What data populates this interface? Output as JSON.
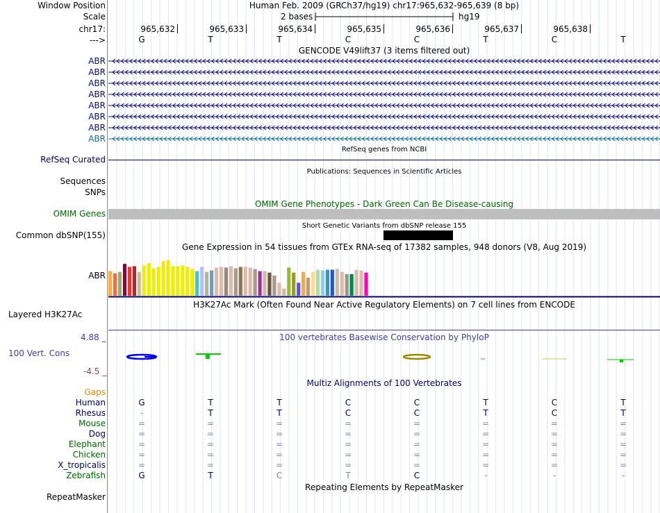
{
  "ruler": {
    "window_position_label": "Window Position",
    "window_position": "Human Feb. 2009 (GRCh37/hg19)   chr17:965,632-965,639 (8 bp)",
    "scale_label": "Scale",
    "scale_value": "2 bases",
    "assembly": "hg19",
    "chrom_label": "chr17:",
    "positions": [
      "965,632",
      "965,633",
      "965,634",
      "965,635",
      "965,636",
      "965,637",
      "965,638"
    ],
    "strand_label": "--->",
    "bases": [
      "G",
      "T",
      "T",
      "C",
      "C",
      "T",
      "C",
      "T"
    ]
  },
  "gencode": {
    "title": "GENCODE V49lift37 (3 items filtered out)",
    "rows": [
      "ABR",
      "ABR",
      "ABR",
      "ABR",
      "ABR",
      "ABR",
      "ABR",
      "ABR"
    ]
  },
  "refseq": {
    "title": "RefSeq genes from NCBI",
    "label": "RefSeq Curated"
  },
  "publications": {
    "title": "Publications: Sequences in Scientific Articles",
    "label_sequences": "Sequences",
    "label_snps": "SNPs"
  },
  "omim": {
    "title": "OMIM Gene Phenotypes - Dark Green Can Be Disease-causing",
    "label": "OMIM Genes"
  },
  "dbsnp": {
    "title": "Short Genetic Variants from dbSNP release 155",
    "label": "Common dbSNP(155)"
  },
  "gtex": {
    "title": "Gene Expression in 54 tissues from GTEx RNA-seq of 17382 samples, 948 donors (V8, Aug 2019)",
    "label": "ABR"
  },
  "h3k27ac": {
    "title": "H3K27Ac Mark (Often Found Near Active Regulatory Elements) on 7 cell lines from ENCODE",
    "label": "Layered H3K27Ac"
  },
  "conservation": {
    "title": "100 vertebrates Basewise Conservation by PhyloP",
    "label": "100 Vert. Cons",
    "max_label": "4.88 _",
    "min_label": "-4.5 _"
  },
  "multiz": {
    "title": "Multiz Alignments of 100 Vertebrates",
    "gaps_label": "Gaps",
    "species": [
      {
        "name": "Human",
        "bases": [
          "G",
          "T",
          "T",
          "C",
          "C",
          "T",
          "C",
          "T"
        ]
      },
      {
        "name": "Rhesus",
        "bases": [
          "-",
          "T",
          "T",
          "C",
          "C",
          "T",
          "C",
          "T"
        ]
      },
      {
        "name": "Mouse",
        "bases": [
          "=",
          "=",
          "=",
          "=",
          "=",
          "=",
          "=",
          "="
        ]
      },
      {
        "name": "Dog",
        "bases": [
          "=",
          "=",
          "=",
          "=",
          "=",
          "=",
          "=",
          "="
        ]
      },
      {
        "name": "Elephant",
        "bases": [
          "=",
          "=",
          "=",
          "=",
          "=",
          "=",
          "=",
          "="
        ]
      },
      {
        "name": "Chicken",
        "bases": [
          "=",
          "=",
          "=",
          "=",
          "=",
          "=",
          "=",
          "="
        ]
      },
      {
        "name": "X_tropicalis",
        "bases": [
          "=",
          "=",
          "=",
          "=",
          "=",
          "=",
          "=",
          "="
        ]
      },
      {
        "name": "Zebrafish",
        "bases": [
          "G",
          "T",
          "C",
          "T",
          "C",
          "-",
          "-",
          "-"
        ]
      }
    ]
  },
  "repeatmasker": {
    "title": "Repeating Elements by RepeatMasker",
    "label": "RepeatMasker"
  },
  "gtex_values": [
    {
      "v": 34,
      "c": "#FFAA44"
    },
    {
      "v": 31,
      "c": "#FF6644"
    },
    {
      "v": 33,
      "c": "#99AA77"
    },
    {
      "v": 44,
      "c": "#880044"
    },
    {
      "v": 40,
      "c": "#EE3333"
    },
    {
      "v": 41,
      "c": "#BB2222"
    },
    {
      "v": 33,
      "c": "#CCBBAA"
    },
    {
      "v": 42,
      "c": "#EEEE00"
    },
    {
      "v": 45,
      "c": "#EEEE00"
    },
    {
      "v": 38,
      "c": "#EEEE00"
    },
    {
      "v": 40,
      "c": "#EEEE00"
    },
    {
      "v": 48,
      "c": "#EEEE00"
    },
    {
      "v": 49,
      "c": "#EEEE00"
    },
    {
      "v": 41,
      "c": "#EEEE00"
    },
    {
      "v": 41,
      "c": "#EEEE00"
    },
    {
      "v": 42,
      "c": "#EEEE00"
    },
    {
      "v": 40,
      "c": "#EEEE00"
    },
    {
      "v": 37,
      "c": "#EEEE00"
    },
    {
      "v": 34,
      "c": "#33CCCC"
    },
    {
      "v": 40,
      "c": "#BBBBFF"
    },
    {
      "v": 33,
      "c": "#AABB99"
    },
    {
      "v": 35,
      "c": "#7799BB"
    },
    {
      "v": 39,
      "c": "#DDBBAA"
    },
    {
      "v": 40,
      "c": "#DDBBAA"
    },
    {
      "v": 39,
      "c": "#998877"
    },
    {
      "v": 41,
      "c": "#DDBBAA"
    },
    {
      "v": 38,
      "c": "#AA9988"
    },
    {
      "v": 40,
      "c": "#887755"
    },
    {
      "v": 40,
      "c": "#DDBBAA"
    },
    {
      "v": 39,
      "c": "#DDBBAA"
    },
    {
      "v": 37,
      "c": "#AA9988"
    },
    {
      "v": 34,
      "c": "#993399"
    },
    {
      "v": 34,
      "c": "#CCBBAA"
    },
    {
      "v": 32,
      "c": "#665544"
    },
    {
      "v": 28,
      "c": "#AA9988"
    },
    {
      "v": 18,
      "c": "#DDBBAA"
    },
    {
      "v": 10,
      "c": "#CCBBAA"
    },
    {
      "v": 39,
      "c": "#99BB33"
    },
    {
      "v": 32,
      "c": "#999933"
    },
    {
      "v": 18,
      "c": "#5555EE"
    },
    {
      "v": 33,
      "c": "#EEAA55"
    },
    {
      "v": 25,
      "c": "#CC9966"
    },
    {
      "v": 33,
      "c": "#FFDD99"
    },
    {
      "v": 36,
      "c": "#AADDAA"
    },
    {
      "v": 35,
      "c": "#99CCDD"
    },
    {
      "v": 36,
      "c": "#3399CC"
    },
    {
      "v": 36,
      "c": "#2255CC"
    },
    {
      "v": 37,
      "c": "#CCBBAA"
    },
    {
      "v": 33,
      "c": "#DDBBAA"
    },
    {
      "v": 30,
      "c": "#999988"
    },
    {
      "v": 30,
      "c": "#008844"
    },
    {
      "v": 36,
      "c": "#DDBBAA"
    },
    {
      "v": 35,
      "c": "#DDBBAA"
    },
    {
      "v": 32,
      "c": "#FF00BB"
    }
  ],
  "colors": {
    "track_label": "#000066",
    "gencode": "#0c0c78",
    "gencode_light": "#0c6c9c",
    "omim_title": "#006600",
    "omim_bar": "#bebebe",
    "cons_blue": "#3f3fa0",
    "cons_min": "#a03f3f",
    "gaps": "#e08c00",
    "dbsnp_bar": "#000000"
  }
}
